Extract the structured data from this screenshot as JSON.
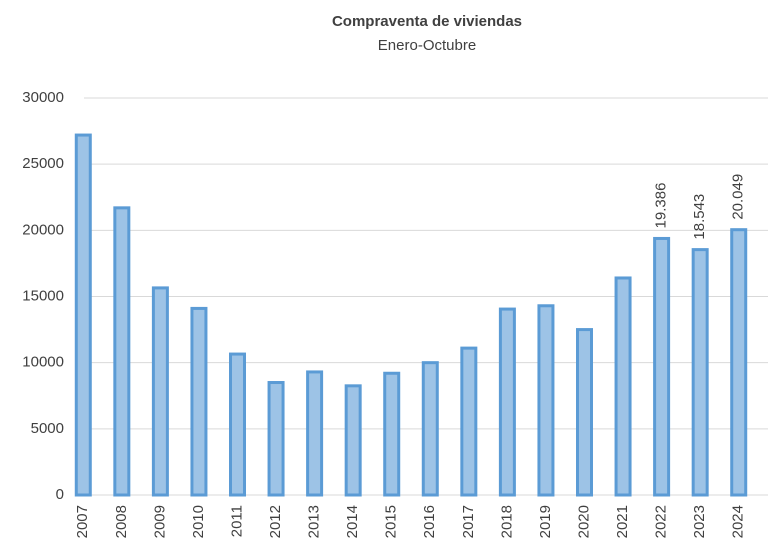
{
  "chart_data": {
    "type": "bar",
    "title": "Compraventa de viviendas",
    "subtitle": "Enero-Octubre",
    "categories": [
      "2007",
      "2008",
      "2009",
      "2010",
      "2011",
      "2012",
      "2013",
      "2014",
      "2015",
      "2016",
      "2017",
      "2018",
      "2019",
      "2020",
      "2021",
      "2022",
      "2023",
      "2024"
    ],
    "values": [
      27200,
      21700,
      15650,
      14100,
      10650,
      8500,
      9300,
      8250,
      9200,
      10000,
      11100,
      14050,
      14300,
      12500,
      16400,
      19386,
      18543,
      20049
    ],
    "value_labels": [
      null,
      null,
      null,
      null,
      null,
      null,
      null,
      null,
      null,
      null,
      null,
      null,
      null,
      null,
      null,
      "19.386",
      "18.543",
      "20.049"
    ],
    "color": "#9dc3e6",
    "edge_color": "#5b9bd5",
    "ylim": [
      0,
      30000
    ],
    "yticks": [
      0,
      5000,
      10000,
      15000,
      20000,
      25000,
      30000
    ],
    "grid": true
  }
}
